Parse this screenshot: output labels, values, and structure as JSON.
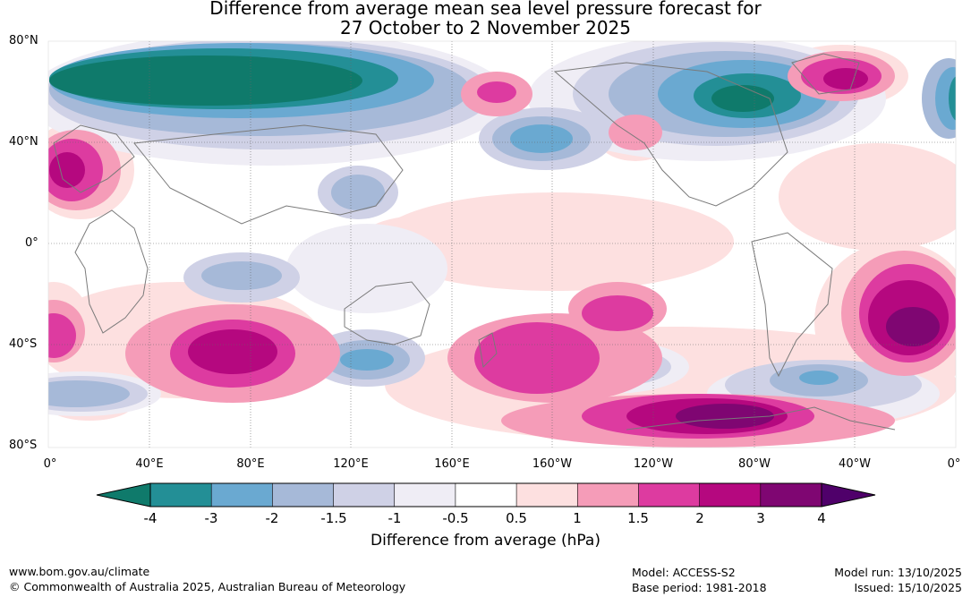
{
  "title_line1": "Difference from average mean sea level pressure forecast for",
  "title_line2": "27 October to 2 November 2025",
  "lat_labels": [
    "80°N",
    "40°N",
    "0°",
    "40°S",
    "80°S"
  ],
  "lon_labels": [
    "0°",
    "40°E",
    "80°E",
    "120°E",
    "160°E",
    "160°W",
    "120°W",
    "80°W",
    "40°W",
    "0°"
  ],
  "colorbar": {
    "title": "Difference from average (hPa)",
    "tick_labels": [
      "-4",
      "-3",
      "-2",
      "-1.5",
      "-1",
      "-0.5",
      "0.5",
      "1",
      "1.5",
      "2",
      "3",
      "4"
    ],
    "colors": [
      "#0f7a6b",
      "#238f96",
      "#6aa9d1",
      "#a6b9d8",
      "#cfd1e6",
      "#efedf5",
      "#ffffff",
      "#fde0e0",
      "#f59cb8",
      "#dd3ba0",
      "#b5087f",
      "#7f0672",
      "#4f006a"
    ]
  },
  "footer": {
    "website": "www.bom.gov.au/climate",
    "copyright": "© Commonwealth of Australia 2025, Australian Bureau of Meteorology",
    "model": "Model: ACCESS-S2",
    "base_period": "Base period: 1981-2018",
    "model_run": "Model run: 13/10/2025",
    "issued": "Issued: 15/10/2025"
  }
}
